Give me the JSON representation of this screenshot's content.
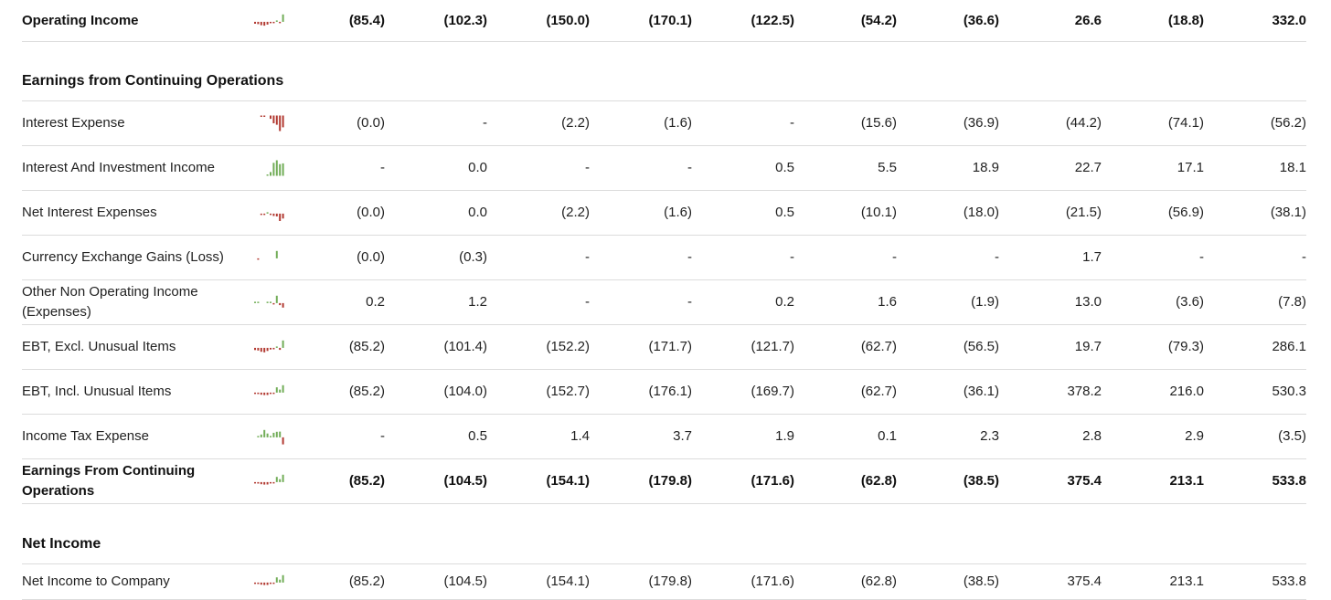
{
  "colors": {
    "negative": "#b23a32",
    "positive": "#72ad58",
    "divider": "#dcdcdc"
  },
  "rows": [
    {
      "type": "data",
      "bold": true,
      "label": "Operating Income",
      "values": [
        "(85.4)",
        "(102.3)",
        "(150.0)",
        "(170.1)",
        "(122.5)",
        "(54.2)",
        "(36.6)",
        "26.6",
        "(18.8)",
        "332.0"
      ],
      "nums": [
        -85.4,
        -102.3,
        -150.0,
        -170.1,
        -122.5,
        -54.2,
        -36.6,
        26.6,
        -18.8,
        332.0
      ]
    },
    {
      "type": "section",
      "label": "Earnings from Continuing Operations"
    },
    {
      "type": "data",
      "label": "Interest Expense",
      "values": [
        "(0.0)",
        "-",
        "(2.2)",
        "(1.6)",
        "-",
        "(15.6)",
        "(36.9)",
        "(44.2)",
        "(74.1)",
        "(56.2)"
      ],
      "nums": [
        -0.0,
        0,
        -2.2,
        -1.6,
        0,
        -15.6,
        -36.9,
        -44.2,
        -74.1,
        -56.2
      ]
    },
    {
      "type": "data",
      "label": "Interest And Investment Income",
      "values": [
        "-",
        "0.0",
        "-",
        "-",
        "0.5",
        "5.5",
        "18.9",
        "22.7",
        "17.1",
        "18.1"
      ],
      "nums": [
        0,
        0.0,
        0,
        0,
        0.5,
        5.5,
        18.9,
        22.7,
        17.1,
        18.1
      ]
    },
    {
      "type": "data",
      "label": "Net Interest Expenses",
      "values": [
        "(0.0)",
        "0.0",
        "(2.2)",
        "(1.6)",
        "0.5",
        "(10.1)",
        "(18.0)",
        "(21.5)",
        "(56.9)",
        "(38.1)"
      ],
      "nums": [
        -0.0,
        0.0,
        -2.2,
        -1.6,
        0.5,
        -10.1,
        -18.0,
        -21.5,
        -56.9,
        -38.1
      ]
    },
    {
      "type": "data",
      "label": "Currency Exchange Gains (Loss)",
      "values": [
        "(0.0)",
        "(0.3)",
        "-",
        "-",
        "-",
        "-",
        "-",
        "1.7",
        "-",
        "-"
      ],
      "nums": [
        -0.0,
        -0.3,
        0,
        0,
        0,
        0,
        0,
        1.7,
        0,
        0
      ]
    },
    {
      "type": "data",
      "label": "Other Non Operating Income (Expenses)",
      "values": [
        "0.2",
        "1.2",
        "-",
        "-",
        "0.2",
        "1.6",
        "(1.9)",
        "13.0",
        "(3.6)",
        "(7.8)"
      ],
      "nums": [
        0.2,
        1.2,
        0,
        0,
        0.2,
        1.6,
        -1.9,
        13.0,
        -3.6,
        -7.8
      ]
    },
    {
      "type": "data",
      "label": "EBT, Excl. Unusual Items",
      "values": [
        "(85.2)",
        "(101.4)",
        "(152.2)",
        "(171.7)",
        "(121.7)",
        "(62.7)",
        "(56.5)",
        "19.7",
        "(79.3)",
        "286.1"
      ],
      "nums": [
        -85.2,
        -101.4,
        -152.2,
        -171.7,
        -121.7,
        -62.7,
        -56.5,
        19.7,
        -79.3,
        286.1
      ]
    },
    {
      "type": "data",
      "label": "EBT, Incl. Unusual Items",
      "values": [
        "(85.2)",
        "(104.0)",
        "(152.7)",
        "(176.1)",
        "(169.7)",
        "(62.7)",
        "(36.1)",
        "378.2",
        "216.0",
        "530.3"
      ],
      "nums": [
        -85.2,
        -104.0,
        -152.7,
        -176.1,
        -169.7,
        -62.7,
        -36.1,
        378.2,
        216.0,
        530.3
      ]
    },
    {
      "type": "data",
      "label": "Income Tax Expense",
      "values": [
        "-",
        "0.5",
        "1.4",
        "3.7",
        "1.9",
        "0.1",
        "2.3",
        "2.8",
        "2.9",
        "(3.5)"
      ],
      "nums": [
        0,
        0.5,
        1.4,
        3.7,
        1.9,
        0.1,
        2.3,
        2.8,
        2.9,
        -3.5
      ]
    },
    {
      "type": "data",
      "bold": true,
      "label": "Earnings From Continuing Operations",
      "values": [
        "(85.2)",
        "(104.5)",
        "(154.1)",
        "(179.8)",
        "(171.6)",
        "(62.8)",
        "(38.5)",
        "375.4",
        "213.1",
        "533.8"
      ],
      "nums": [
        -85.2,
        -104.5,
        -154.1,
        -179.8,
        -171.6,
        -62.8,
        -38.5,
        375.4,
        213.1,
        533.8
      ]
    },
    {
      "type": "section",
      "label": "Net Income"
    },
    {
      "type": "data",
      "label": "Net Income to Company",
      "values": [
        "(85.2)",
        "(104.5)",
        "(154.1)",
        "(179.8)",
        "(171.6)",
        "(62.8)",
        "(38.5)",
        "375.4",
        "213.1",
        "533.8"
      ],
      "nums": [
        -85.2,
        -104.5,
        -154.1,
        -179.8,
        -171.6,
        -62.8,
        -38.5,
        375.4,
        213.1,
        533.8
      ]
    }
  ]
}
